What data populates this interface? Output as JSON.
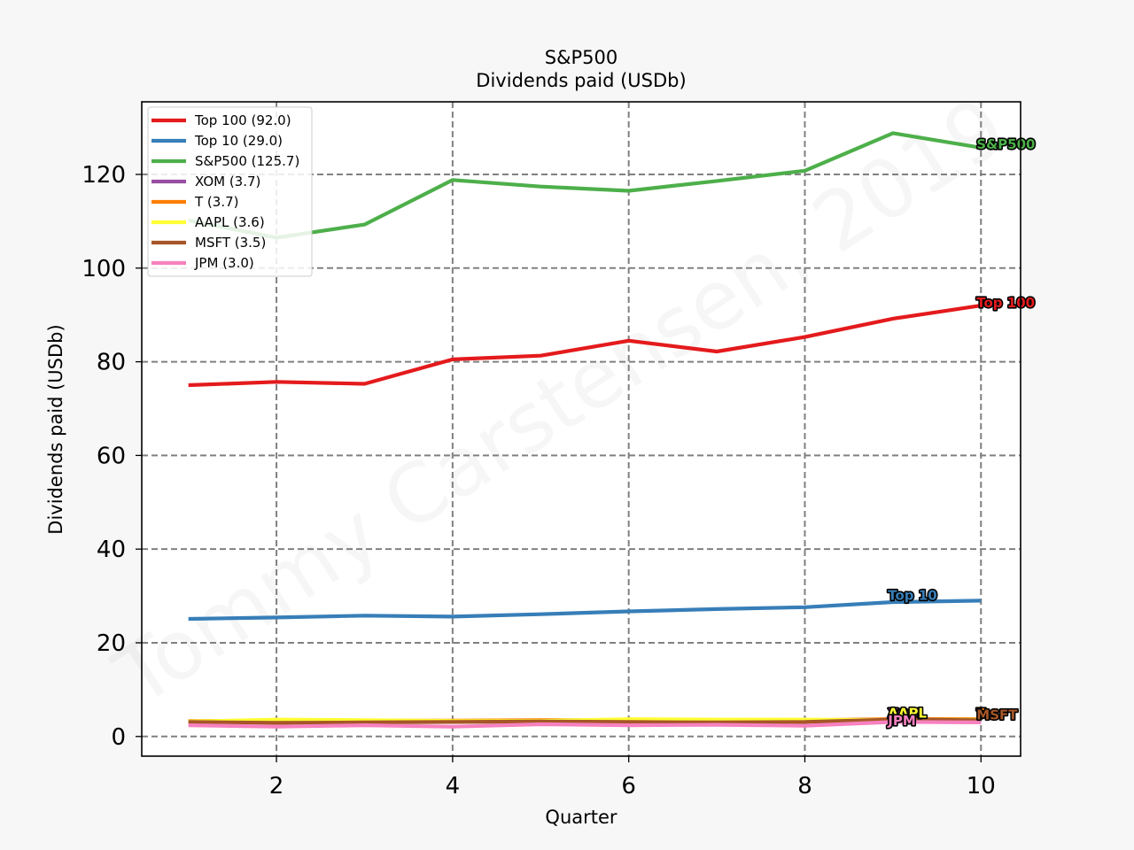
{
  "chart_data": {
    "type": "line",
    "title": "S&P500",
    "subtitle": "Dividends paid (USDb)",
    "xlabel": "Quarter",
    "ylabel": "Dividends paid (USDb)",
    "xlim": [
      0.47,
      10.45
    ],
    "ylim": [
      -4.2,
      135.5
    ],
    "xticks": [
      2,
      4,
      6,
      8,
      10
    ],
    "yticks": [
      0,
      20,
      40,
      60,
      80,
      100,
      120
    ],
    "grid": true,
    "legend_placement": "top-left",
    "watermark": "Tommy Carstensen, 2019",
    "x": [
      1,
      2,
      3,
      4,
      5,
      6,
      7,
      8,
      9,
      10
    ],
    "series": [
      {
        "name": "Top 100 (92.0)",
        "end_label": "Top 100",
        "color": "#e41a1c",
        "values": [
          75.0,
          75.7,
          75.3,
          80.5,
          81.3,
          84.5,
          82.2,
          85.3,
          89.2,
          92.0
        ]
      },
      {
        "name": "Top 10 (29.0)",
        "end_label": "Top 10",
        "color": "#377eb8",
        "values": [
          25.1,
          25.4,
          25.8,
          25.6,
          26.1,
          26.7,
          27.2,
          27.6,
          28.7,
          29.0
        ]
      },
      {
        "name": "S&P500 (125.7)",
        "end_label": "S&P500",
        "color": "#4daf4a",
        "values": [
          110.2,
          106.5,
          109.3,
          118.8,
          117.4,
          116.5,
          118.6,
          120.8,
          128.8,
          125.7
        ]
      },
      {
        "name": "XOM (3.7)",
        "end_label": "XOM",
        "color": "#984ea3",
        "values": [
          3.2,
          3.2,
          3.2,
          3.2,
          3.3,
          3.3,
          3.3,
          3.3,
          3.7,
          3.7
        ]
      },
      {
        "name": "T (3.7)",
        "end_label": "T",
        "color": "#ff7f00",
        "values": [
          3.3,
          3.4,
          3.4,
          3.4,
          3.5,
          3.5,
          3.5,
          3.5,
          3.7,
          3.7
        ]
      },
      {
        "name": "AAPL (3.6)",
        "end_label": "AAPL",
        "color": "#ffff33",
        "values": [
          3.2,
          3.6,
          3.5,
          3.3,
          3.3,
          3.7,
          3.6,
          3.6,
          3.5,
          3.6
        ]
      },
      {
        "name": "MSFT (3.5)",
        "end_label": "MSFT",
        "color": "#a65628",
        "values": [
          3.1,
          2.9,
          3.0,
          3.1,
          3.2,
          3.1,
          3.0,
          3.1,
          3.6,
          3.5
        ]
      },
      {
        "name": "JPM (3.0)",
        "end_label": "JPM",
        "color": "#f781bf",
        "values": [
          2.4,
          2.1,
          2.4,
          2.1,
          2.6,
          2.4,
          2.5,
          2.3,
          3.1,
          3.0
        ]
      }
    ]
  }
}
